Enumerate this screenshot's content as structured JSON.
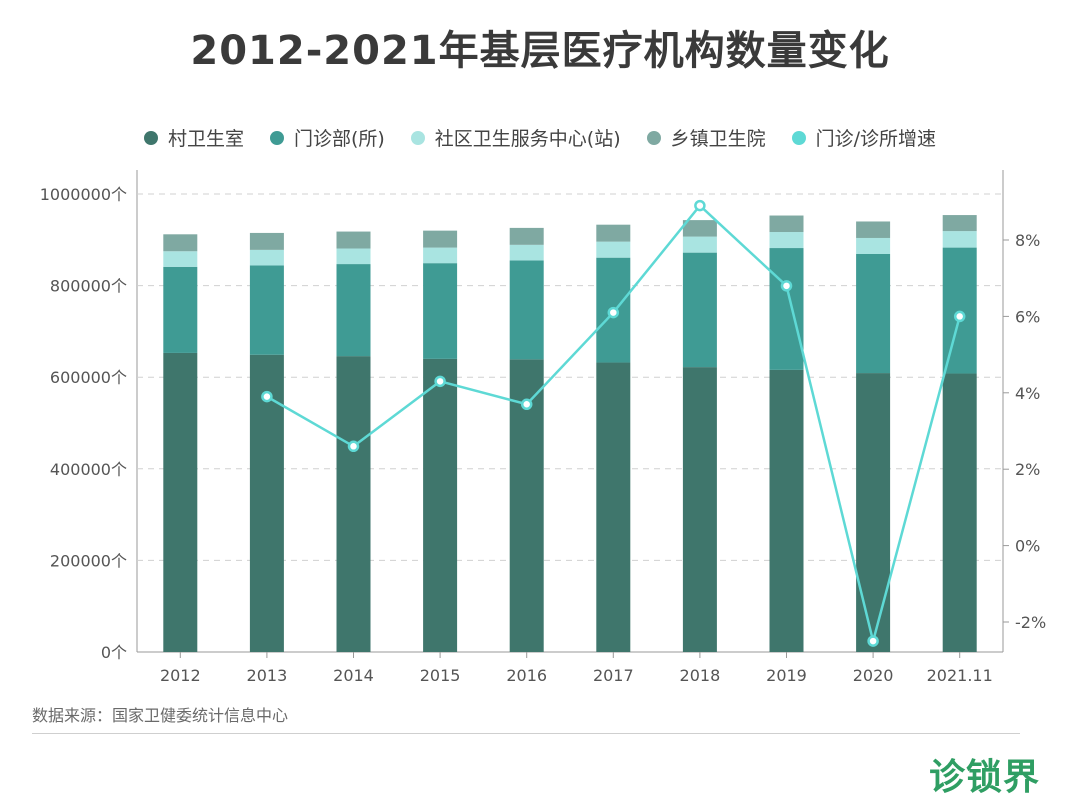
{
  "title": "2012-2021年基层医疗机构数量变化",
  "legend": [
    {
      "label": "村卫生室",
      "color": "#3f766c"
    },
    {
      "label": "门诊部(所)",
      "color": "#3f9b94"
    },
    {
      "label": "社区卫生服务中心(站)",
      "color": "#a9e4e1"
    },
    {
      "label": "乡镇卫生院",
      "color": "#7fa9a2"
    },
    {
      "label": "门诊/诊所增速",
      "color": "#5ed9d5"
    }
  ],
  "source": "数据来源：国家卫健委统计信息中心",
  "brand": "诊锁界",
  "chart_data": {
    "type": "bar",
    "stacked": true,
    "categories": [
      "2012",
      "2013",
      "2014",
      "2015",
      "2016",
      "2017",
      "2018",
      "2019",
      "2020",
      "2021.11"
    ],
    "series": [
      {
        "name": "村卫生室",
        "values": [
          653000,
          649000,
          646000,
          640000,
          639000,
          632000,
          622000,
          616000,
          609000,
          608000
        ],
        "color": "#3f766c"
      },
      {
        "name": "门诊部(所)",
        "values": [
          188000,
          195000,
          201000,
          209000,
          216000,
          229000,
          250000,
          266000,
          260000,
          275000
        ],
        "color": "#3f9b94"
      },
      {
        "name": "社区卫生服务中心(站)",
        "values": [
          34000,
          34000,
          34000,
          34000,
          34000,
          35000,
          35000,
          35000,
          35000,
          36000
        ],
        "color": "#a9e4e1"
      },
      {
        "name": "乡镇卫生院",
        "values": [
          37000,
          37000,
          37000,
          37000,
          37000,
          37000,
          36000,
          36000,
          36000,
          35000
        ],
        "color": "#7fa9a2"
      }
    ],
    "line_series": {
      "name": "门诊/诊所增速",
      "color": "#5ed9d5",
      "values": [
        null,
        3.9,
        2.6,
        4.3,
        3.7,
        6.1,
        8.9,
        6.8,
        -2.5,
        6.0
      ],
      "unit": "%"
    },
    "y_left": {
      "min": 0,
      "max": 1000000,
      "ticks": [
        0,
        200000,
        400000,
        600000,
        800000,
        1000000
      ],
      "suffix": "个"
    },
    "y_right": {
      "min": -2.8,
      "max": 9.6,
      "ticks": [
        -2,
        0,
        2,
        4,
        6,
        8
      ],
      "suffix": "%"
    },
    "grid": true,
    "legend_position": "top"
  }
}
